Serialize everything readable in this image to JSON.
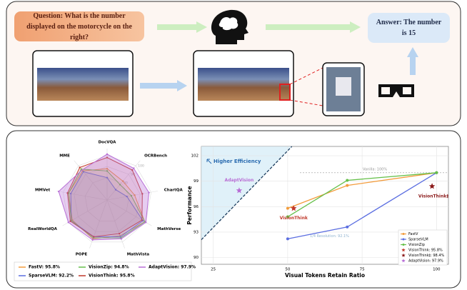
{
  "diagram": {
    "question": "Question: What is the number displayed on the motorcycle on the right?",
    "answer": "Answer: The number is 15"
  },
  "chart_data": [
    {
      "type": "radar",
      "axes": [
        "DocVQA",
        "OCRBench",
        "ChartQA",
        "MathVerse",
        "MathVista",
        "POPE",
        "RealWorldQA",
        "MMVet",
        "MME"
      ],
      "rlim": [
        60,
        106
      ],
      "rticks": [
        80,
        90,
        100
      ],
      "legend": "bottom",
      "series": [
        {
          "name": "FastV: 95.8%",
          "color": "#f39c3c",
          "values": [
            88,
            82,
            85,
            99,
            94,
            97,
            96,
            95,
            94
          ]
        },
        {
          "name": "SparseVLM: 92.2%",
          "color": "#5b6ee1",
          "values": [
            80,
            72,
            78,
            97,
            95,
            95,
            97,
            93,
            93
          ]
        },
        {
          "name": "VisionZip: 94.8%",
          "color": "#66c04a",
          "values": [
            86,
            78,
            82,
            99,
            96,
            96,
            97,
            95,
            96
          ]
        },
        {
          "name": "VisionThink: 95.8%",
          "color": "#c0392b",
          "values": [
            98,
            95,
            92,
            96,
            92,
            95,
            98,
            96,
            98
          ]
        },
        {
          "name": "AdaptVision: 97.9%",
          "color": "#b86fd6",
          "values": [
            101,
            97,
            98,
            100,
            97,
            98,
            100,
            104,
            95
          ]
        }
      ]
    },
    {
      "type": "line",
      "xlabel": "Visual Tokens Retain Ratio",
      "ylabel": "Performance",
      "xlim": [
        21,
        104
      ],
      "ylim": [
        89.2,
        103.1
      ],
      "xticks": [
        25,
        50,
        75,
        100
      ],
      "yticks": [
        90,
        93,
        96,
        99,
        102
      ],
      "grid": true,
      "legend": "lower right",
      "efficiency_label": "Higher Efficiency",
      "boundary": {
        "x": [
          21,
          51.4
        ],
        "y": [
          92.1,
          103.1
        ]
      },
      "reference_lines": [
        {
          "value": 100,
          "label": "Vanilla: 100%"
        },
        {
          "value": 92.1,
          "label": "1/4 Resolution: 92.1%"
        }
      ],
      "series": [
        {
          "name": "FastV",
          "color": "#f39c3c",
          "marker": "circle",
          "x": [
            50,
            70,
            100
          ],
          "values": [
            95.8,
            98.5,
            100
          ]
        },
        {
          "name": "SparseVLM",
          "color": "#5b6ee1",
          "marker": "circle",
          "x": [
            50,
            70,
            100
          ],
          "values": [
            92.2,
            93.6,
            100
          ]
        },
        {
          "name": "VisionZip",
          "color": "#66c04a",
          "marker": "circle",
          "x": [
            50,
            70,
            100
          ],
          "values": [
            94.8,
            99.1,
            100
          ]
        },
        {
          "name": "VisionThink: 95.8%",
          "color": "#c0392b",
          "marker": "star",
          "label": "VisionThink",
          "x": [
            52
          ],
          "values": [
            95.8
          ]
        },
        {
          "name": "VisionThink‡: 98.4%",
          "color": "#8b1a1a",
          "marker": "star",
          "label": "VisionThink‡",
          "x": [
            98.5
          ],
          "values": [
            98.4
          ]
        },
        {
          "name": "AdaptVision: 97.9%",
          "color": "#b86fd6",
          "marker": "star",
          "label": "AdaptVision",
          "x": [
            33.7
          ],
          "values": [
            97.9
          ]
        }
      ]
    }
  ]
}
